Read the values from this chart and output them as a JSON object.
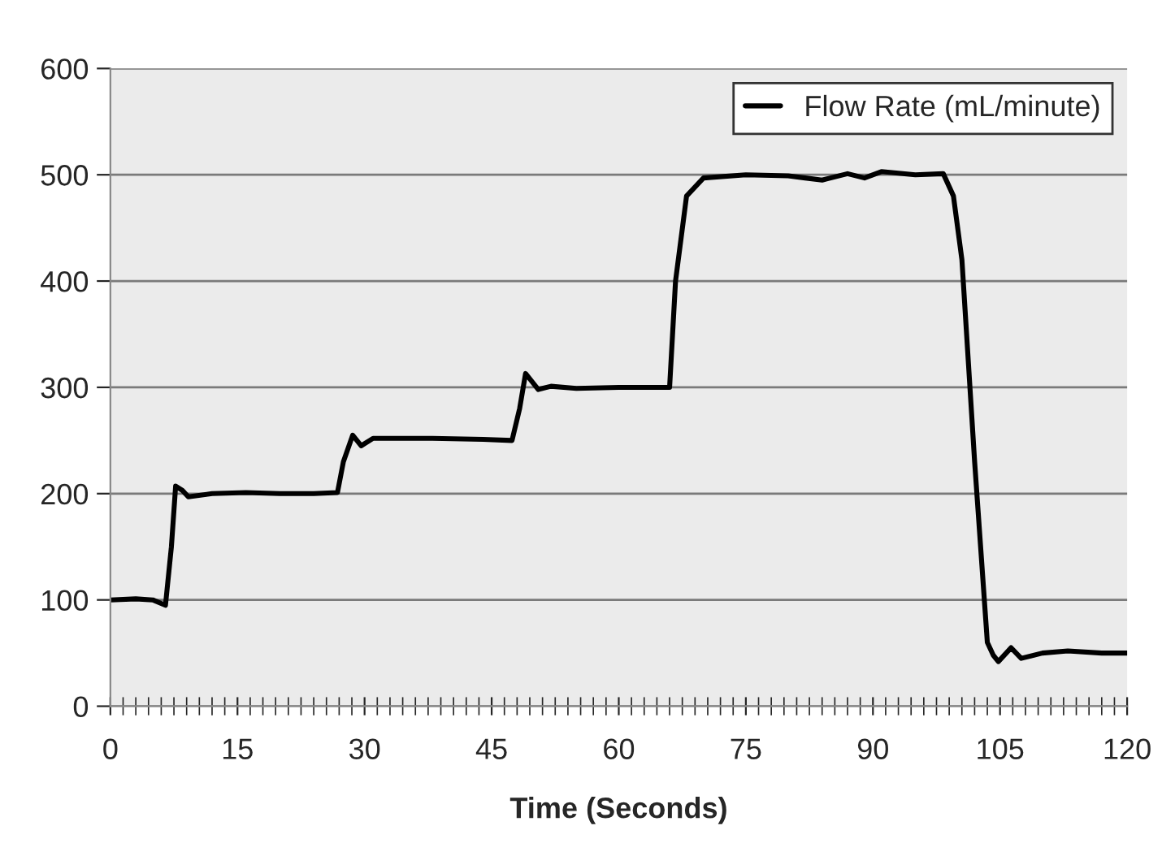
{
  "chart_data": {
    "type": "line",
    "xlabel": "Time (Seconds)",
    "x": [
      0,
      3,
      5,
      6.5,
      7.2,
      7.7,
      8.5,
      9.2,
      12,
      16,
      20,
      24,
      26.8,
      27.5,
      28.6,
      29.6,
      31,
      38,
      44,
      47.4,
      48.3,
      49,
      50.5,
      52,
      55,
      60,
      66,
      66.7,
      68,
      70,
      75,
      80,
      82,
      84,
      87,
      89,
      91,
      95,
      98.3,
      99.5,
      100.5,
      102,
      103.5,
      104.2,
      104.8,
      106.3,
      107.5,
      110,
      113,
      117,
      120
    ],
    "series": [
      {
        "name": "Flow Rate (mL/minute)",
        "color": "#000000",
        "values": [
          100,
          101,
          100,
          95,
          150,
          207,
          203,
          197,
          200,
          201,
          200,
          200,
          201,
          230,
          255,
          245,
          252,
          252,
          251,
          250,
          280,
          313,
          298,
          301,
          299,
          300,
          300,
          400,
          480,
          497,
          500,
          499,
          497,
          495,
          501,
          497,
          503,
          500,
          501,
          480,
          420,
          230,
          60,
          48,
          42,
          55,
          45,
          50,
          52,
          50,
          50
        ]
      }
    ],
    "xlim": [
      0,
      120
    ],
    "xticks": [
      0,
      15,
      30,
      45,
      60,
      75,
      90,
      105,
      120
    ],
    "ylim": [
      0,
      600
    ],
    "yticks": [
      0,
      100,
      200,
      300,
      400,
      500,
      600
    ],
    "grid": "y",
    "legend": "top right",
    "marker": "none",
    "line_style": "solid"
  }
}
